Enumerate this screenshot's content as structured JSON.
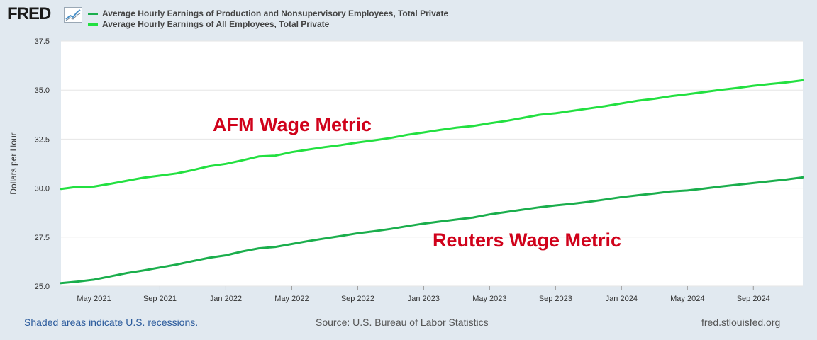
{
  "logo": {
    "text": "FRED"
  },
  "legend": [
    {
      "label": "Average Hourly Earnings of Production and Nonsupervisory Employees, Total Private",
      "color": "#1aae4c"
    },
    {
      "label": "Average Hourly Earnings of All Employees, Total Private",
      "color": "#22e040"
    }
  ],
  "footer": {
    "recessions": "Shaded areas indicate U.S. recessions.",
    "source": "Source: U.S. Bureau of Labor Statistics",
    "site": "fred.stlouisfed.org"
  },
  "chart_data": {
    "type": "line",
    "ylabel": "Dollars per Hour",
    "ylim": [
      25.0,
      37.5
    ],
    "yticks": [
      "25.0",
      "27.5",
      "30.0",
      "32.5",
      "35.0",
      "37.5"
    ],
    "xticks": [
      "May 2021",
      "Sep 2021",
      "Jan 2022",
      "May 2022",
      "Sep 2022",
      "Jan 2023",
      "May 2023",
      "Sep 2023",
      "Jan 2024",
      "May 2024",
      "Sep 2024"
    ],
    "xtick_index": [
      2,
      6,
      10,
      14,
      18,
      22,
      26,
      30,
      34,
      38,
      42
    ],
    "x_count": 46,
    "annotations": [
      {
        "text": "AFM Wage Metric",
        "color": "#d0021b"
      },
      {
        "text": "Reuters Wage Metric",
        "color": "#d0021b"
      }
    ],
    "series": [
      {
        "name": "Average Hourly Earnings of Production and Nonsupervisory Employees, Total Private",
        "color": "#1aae4c",
        "values": [
          25.15,
          25.23,
          25.33,
          25.5,
          25.67,
          25.8,
          25.95,
          26.1,
          26.28,
          26.45,
          26.57,
          26.77,
          26.93,
          27.0,
          27.15,
          27.3,
          27.43,
          27.56,
          27.7,
          27.8,
          27.92,
          28.06,
          28.19,
          28.3,
          28.4,
          28.5,
          28.66,
          28.78,
          28.9,
          29.02,
          29.12,
          29.2,
          29.3,
          29.42,
          29.54,
          29.64,
          29.73,
          29.83,
          29.88,
          29.98,
          30.08,
          30.17,
          30.26,
          30.35,
          30.44,
          30.55
        ]
      },
      {
        "name": "Average Hourly Earnings of All Employees, Total Private",
        "color": "#22e040",
        "values": [
          29.96,
          30.07,
          30.08,
          30.22,
          30.38,
          30.53,
          30.64,
          30.75,
          30.92,
          31.12,
          31.24,
          31.42,
          31.62,
          31.66,
          31.84,
          31.97,
          32.09,
          32.2,
          32.33,
          32.44,
          32.56,
          32.72,
          32.84,
          32.97,
          33.09,
          33.17,
          33.31,
          33.43,
          33.58,
          33.74,
          33.82,
          33.94,
          34.06,
          34.18,
          34.32,
          34.46,
          34.56,
          34.69,
          34.79,
          34.9,
          35.01,
          35.11,
          35.22,
          35.31,
          35.39,
          35.5
        ]
      }
    ]
  }
}
